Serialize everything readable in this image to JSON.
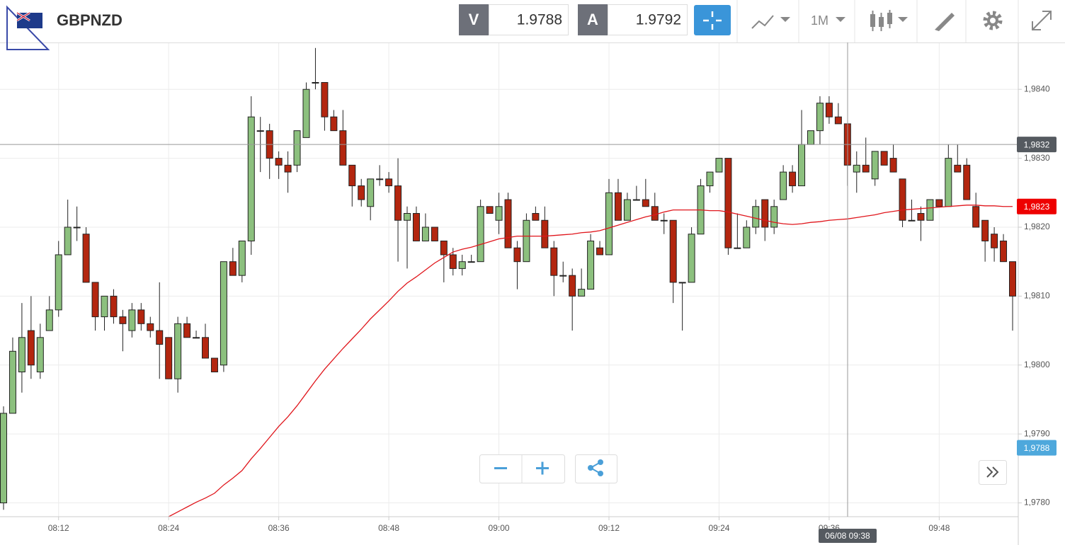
{
  "toolbar": {
    "symbol": "GBPNZD",
    "bid_label": "V",
    "bid": "1.9788",
    "ask_label": "A",
    "ask": "1.9792",
    "timeframe": "1M"
  },
  "chart_data": {
    "type": "candlestick",
    "categories": [
      null,
      null,
      null,
      null,
      null,
      null,
      "08:12",
      null,
      null,
      null,
      null,
      null,
      null,
      null,
      null,
      null,
      null,
      null,
      "08:24",
      null,
      null,
      null,
      null,
      null,
      null,
      null,
      null,
      null,
      null,
      null,
      "08:36",
      null,
      null,
      null,
      null,
      null,
      null,
      null,
      null,
      null,
      null,
      null,
      "08:48",
      null,
      null,
      null,
      null,
      null,
      null,
      null,
      null,
      null,
      null,
      null,
      "09:00",
      null,
      null,
      null,
      null,
      null,
      null,
      null,
      null,
      null,
      null,
      null,
      "09:12",
      null,
      null,
      null,
      null,
      null,
      null,
      null,
      null,
      null,
      null,
      null,
      "09:24",
      null,
      null,
      null,
      null,
      null,
      null,
      null,
      null,
      null,
      null,
      null,
      "09:36",
      null,
      null,
      null,
      null,
      null,
      null,
      null,
      null,
      null,
      null,
      null,
      "09:48",
      null,
      null,
      null,
      null,
      null,
      null,
      null,
      null
    ],
    "candles": {
      "up_color": "#8cc07e",
      "down_color": "#b3260f",
      "open": [
        1.978,
        1.9793,
        1.9799,
        1.9805,
        1.9799,
        1.9805,
        1.9808,
        1.9816,
        1.982,
        1.9819,
        1.9812,
        1.9807,
        1.981,
        1.9807,
        1.9805,
        1.9808,
        1.9806,
        1.9805,
        1.9804,
        1.9798,
        1.9806,
        1.9804,
        1.9804,
        1.9801,
        1.98,
        1.9815,
        1.9813,
        1.9818,
        1.9834,
        1.9834,
        1.983,
        1.9829,
        1.9829,
        1.9833,
        1.9841,
        1.9841,
        1.9836,
        1.9834,
        1.9829,
        1.9826,
        1.9823,
        1.9827,
        1.9827,
        1.9826,
        1.9821,
        1.9822,
        1.9818,
        1.982,
        1.9818,
        1.9816,
        1.9814,
        1.9815,
        1.9815,
        1.9823,
        1.9821,
        1.9824,
        1.9817,
        1.9815,
        1.9822,
        1.9821,
        1.9817,
        1.9813,
        1.9813,
        1.981,
        1.9811,
        1.9817,
        1.9816,
        1.9825,
        1.9821,
        1.9824,
        1.9824,
        1.9823,
        1.9821,
        1.9821,
        1.9812,
        1.9812,
        1.9819,
        1.9826,
        1.9828,
        1.983,
        1.9817,
        1.9817,
        1.982,
        1.9824,
        1.982,
        1.9824,
        1.9828,
        1.9826,
        1.9832,
        1.9834,
        1.9838,
        1.9836,
        1.9835,
        1.9828,
        1.9829,
        1.9827,
        1.9831,
        1.983,
        1.9827,
        1.9821,
        1.9822,
        1.9821,
        1.9824,
        1.9823,
        1.9829,
        1.9829,
        1.9823,
        1.9821,
        1.9819,
        1.9818,
        1.9815
      ],
      "high": [
        1.9794,
        1.9804,
        1.9809,
        1.981,
        1.9806,
        1.981,
        1.9818,
        1.9824,
        1.9823,
        1.982,
        1.9812,
        1.981,
        1.9811,
        1.9808,
        1.9809,
        1.9809,
        1.9807,
        1.9812,
        1.9804,
        1.9807,
        1.9807,
        1.9805,
        1.9806,
        1.9801,
        1.9815,
        1.9817,
        1.9818,
        1.9839,
        1.9836,
        1.9835,
        1.9831,
        1.9831,
        1.9834,
        1.9841,
        1.9846,
        1.9841,
        1.9837,
        1.9837,
        1.9829,
        1.9827,
        1.9827,
        1.9829,
        1.9828,
        1.983,
        1.9823,
        1.9823,
        1.9822,
        1.982,
        1.9818,
        1.9817,
        1.9816,
        1.9816,
        1.9824,
        1.9823,
        1.9825,
        1.9825,
        1.9818,
        1.9822,
        1.9823,
        1.9823,
        1.9818,
        1.9815,
        1.9814,
        1.9814,
        1.9819,
        1.9818,
        1.9827,
        1.9827,
        1.9825,
        1.9826,
        1.9827,
        1.9825,
        1.9822,
        1.9821,
        1.9812,
        1.982,
        1.9827,
        1.9828,
        1.983,
        1.983,
        1.9822,
        1.9821,
        1.9824,
        1.9824,
        1.9824,
        1.9829,
        1.9829,
        1.9837,
        1.9834,
        1.9839,
        1.9839,
        1.9838,
        1.9835,
        1.9831,
        1.9833,
        1.9831,
        1.9831,
        1.9832,
        1.9827,
        1.9824,
        1.9823,
        1.9824,
        1.9824,
        1.9832,
        1.9832,
        1.983,
        1.9825,
        1.9821,
        1.982,
        1.9819,
        1.9815
      ],
      "low": [
        1.9779,
        1.9793,
        1.9796,
        1.9798,
        1.9798,
        1.9805,
        1.9807,
        1.9816,
        1.9818,
        1.9812,
        1.9805,
        1.9805,
        1.9806,
        1.9802,
        1.9804,
        1.9805,
        1.9804,
        1.9798,
        1.9798,
        1.9796,
        1.9804,
        1.9804,
        1.9801,
        1.9799,
        1.9799,
        1.9813,
        1.9812,
        1.9816,
        1.9828,
        1.9827,
        1.9827,
        1.9825,
        1.9828,
        1.9833,
        1.984,
        1.9834,
        1.9834,
        1.9829,
        1.9823,
        1.9823,
        1.9821,
        1.9826,
        1.9825,
        1.9815,
        1.9814,
        1.9818,
        1.9818,
        1.9818,
        1.9812,
        1.9813,
        1.9813,
        1.9815,
        1.9815,
        1.9822,
        1.9819,
        1.9817,
        1.9811,
        1.9815,
        1.9821,
        1.9817,
        1.981,
        1.9812,
        1.9805,
        1.981,
        1.9811,
        1.9816,
        1.9816,
        1.9821,
        1.9821,
        1.9824,
        1.9823,
        1.9821,
        1.9819,
        1.9809,
        1.9805,
        1.9812,
        1.9819,
        1.9825,
        1.9828,
        1.9816,
        1.9817,
        1.9817,
        1.9819,
        1.9818,
        1.9819,
        1.9824,
        1.9825,
        1.9826,
        1.9832,
        1.9832,
        1.9835,
        1.9835,
        1.9826,
        1.9825,
        1.9828,
        1.9826,
        1.9829,
        1.9828,
        1.982,
        1.9821,
        1.9818,
        1.9821,
        1.9823,
        1.9823,
        1.9828,
        1.9824,
        1.982,
        1.9815,
        1.9815,
        1.9815,
        1.9805
      ],
      "close": [
        1.9793,
        1.9802,
        1.9804,
        1.98,
        1.9804,
        1.9808,
        1.9816,
        1.982,
        1.982,
        1.9812,
        1.9807,
        1.981,
        1.9807,
        1.9806,
        1.9808,
        1.9806,
        1.9805,
        1.9803,
        1.9798,
        1.9806,
        1.9804,
        1.9804,
        1.9801,
        1.9799,
        1.9815,
        1.9813,
        1.9818,
        1.9836,
        1.9834,
        1.983,
        1.9829,
        1.9828,
        1.9834,
        1.984,
        1.9841,
        1.9836,
        1.9834,
        1.9829,
        1.9826,
        1.9824,
        1.9827,
        1.9827,
        1.9826,
        1.9821,
        1.9822,
        1.9818,
        1.982,
        1.9818,
        1.9816,
        1.9814,
        1.9815,
        1.9815,
        1.9823,
        1.9822,
        1.9823,
        1.9817,
        1.9815,
        1.9821,
        1.9821,
        1.9817,
        1.9813,
        1.9813,
        1.981,
        1.9811,
        1.9818,
        1.9816,
        1.9825,
        1.9821,
        1.9824,
        1.9824,
        1.9823,
        1.9821,
        1.9821,
        1.9812,
        1.9812,
        1.9819,
        1.9826,
        1.9828,
        1.983,
        1.9817,
        1.9817,
        1.982,
        1.9823,
        1.982,
        1.9823,
        1.9828,
        1.9826,
        1.9832,
        1.9834,
        1.9838,
        1.9836,
        1.9835,
        1.9829,
        1.9829,
        1.9828,
        1.9831,
        1.9829,
        1.9828,
        1.9821,
        1.9821,
        1.9821,
        1.9824,
        1.9823,
        1.983,
        1.9828,
        1.9824,
        1.982,
        1.9818,
        1.9817,
        1.9815,
        1.981
      ]
    },
    "moving_average": {
      "color": "#e0161c",
      "values": [
        null,
        null,
        null,
        null,
        null,
        null,
        null,
        null,
        null,
        null,
        null,
        null,
        null,
        null,
        null,
        null,
        null,
        null,
        1.9778,
        1.97787,
        1.97794,
        1.97801,
        1.97807,
        1.97814,
        1.97826,
        1.97836,
        1.97847,
        1.97864,
        1.97879,
        1.97895,
        1.97911,
        1.97925,
        1.97941,
        1.97959,
        1.97977,
        1.97994,
        1.98009,
        1.98024,
        1.98038,
        1.98052,
        1.98067,
        1.9808,
        1.98093,
        1.98107,
        1.98119,
        1.98128,
        1.98138,
        1.98148,
        1.98156,
        1.98164,
        1.98168,
        1.98171,
        1.98175,
        1.98179,
        1.98183,
        1.98185,
        1.98187,
        1.98187,
        1.98187,
        1.98187,
        1.98188,
        1.98189,
        1.9819,
        1.98192,
        1.98193,
        1.98195,
        1.98199,
        1.98203,
        1.98207,
        1.98211,
        1.98215,
        1.98218,
        1.98222,
        1.98225,
        1.98225,
        1.98225,
        1.98225,
        1.98224,
        1.98224,
        1.98222,
        1.98219,
        1.98216,
        1.98213,
        1.9821,
        1.98207,
        1.98205,
        1.98204,
        1.98205,
        1.98207,
        1.98208,
        1.9821,
        1.98211,
        1.98212,
        1.98214,
        1.98216,
        1.98218,
        1.98221,
        1.98223,
        1.98225,
        1.98226,
        1.98227,
        1.98228,
        1.98229,
        1.9823,
        1.98231,
        1.98232,
        1.98232,
        1.98231,
        1.98231,
        1.9823,
        1.9823
      ]
    },
    "ylim": [
      1.9778,
      1.98468
    ],
    "yticks": [
      {
        "value": 1.978,
        "label": "1,9780"
      },
      {
        "value": 1.979,
        "label": "1,9790"
      },
      {
        "value": 1.98,
        "label": "1,9800"
      },
      {
        "value": 1.981,
        "label": "1,9810"
      },
      {
        "value": 1.982,
        "label": "1,9820"
      },
      {
        "value": 1.983,
        "label": "1,9830"
      },
      {
        "value": 1.984,
        "label": "1,9840"
      }
    ],
    "grid": true,
    "crosshair": {
      "x_label": "06/08 09:38",
      "y": {
        "value": 1.9832,
        "label": "1,9832"
      },
      "color": "#555a60"
    },
    "price_tags": [
      {
        "value": 1.9823,
        "label": "1,9823",
        "color": "#ee0000"
      },
      {
        "value": 1.9788,
        "label": "1,9788",
        "color": "#4ea8dc"
      }
    ]
  }
}
